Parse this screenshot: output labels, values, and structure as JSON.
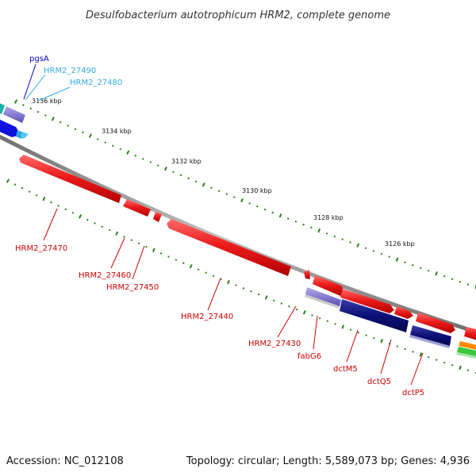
{
  "title": "Desulfobacterium autotrophicum HRM2, complete genome",
  "footer": {
    "accession": "Accession: NC_012108",
    "summary": "Topology: circular; Length: 5,589,073 bp; Genes: 4,936"
  },
  "colors": {
    "backbone": "#8c8c8c",
    "tick": "#2e7d1e",
    "red": "#e8151b",
    "navy": "#0b0f78",
    "blue": "#1010e0",
    "lavender": "#7a6fd0",
    "cyan": "#2aa8dd",
    "teal": "#19b3a8",
    "label_red": "#cc0000",
    "label_blue": "#0000cc",
    "label_cyan": "#33aadd"
  },
  "scale_labels": [
    "3136 kbp",
    "3134 kbp",
    "3132 kbp",
    "3130 kbp",
    "3128 kbp",
    "3126 kbp"
  ],
  "gene_labels": {
    "pgsA": "pgsA",
    "HRM2_27490": "HRM2_27490",
    "HRM2_27480": "HRM2_27480",
    "HRM2_27470": "HRM2_27470",
    "HRM2_27460": "HRM2_27460",
    "HRM2_27450": "HRM2_27450",
    "HRM2_27440": "HRM2_27440",
    "HRM2_27430": "HRM2_27430",
    "fabG6": "fabG6",
    "dctM5": "dctM5",
    "dctQ5": "dctQ5",
    "dctP5": "dctP5"
  }
}
